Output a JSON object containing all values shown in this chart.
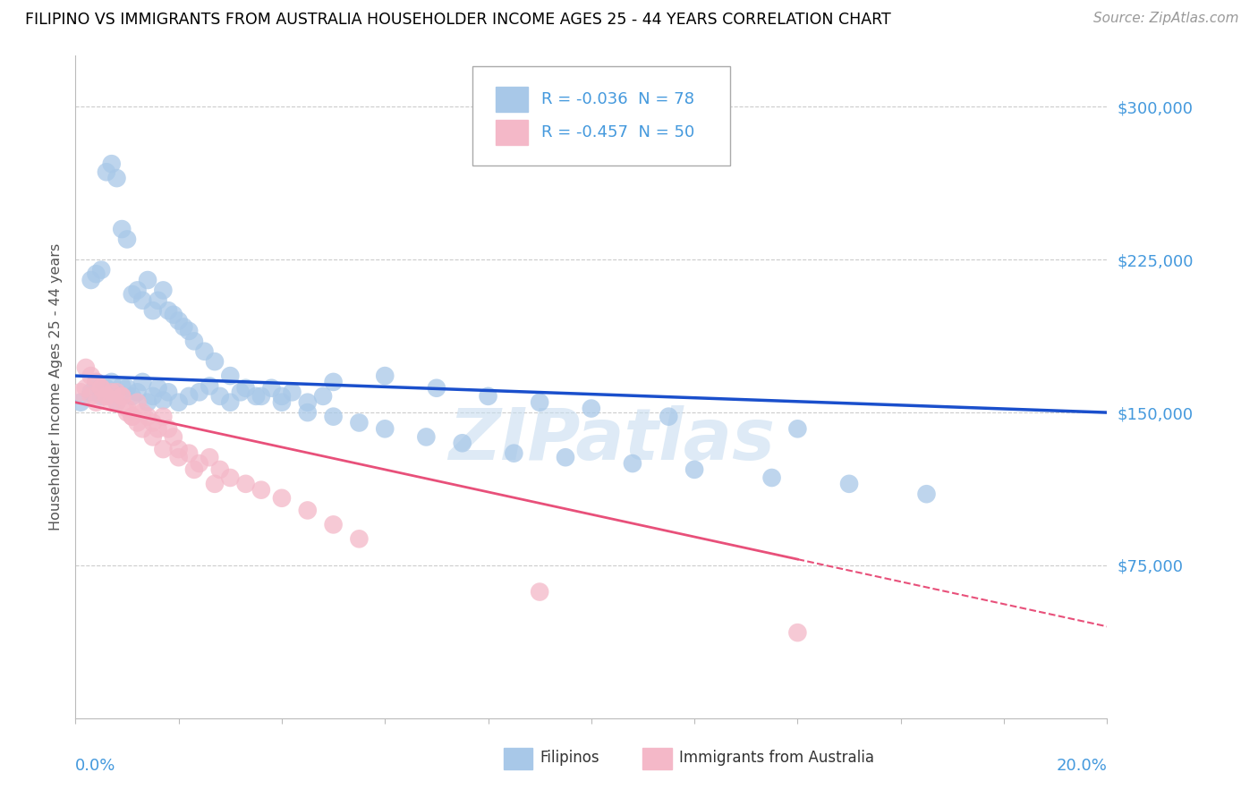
{
  "title": "FILIPINO VS IMMIGRANTS FROM AUSTRALIA HOUSEHOLDER INCOME AGES 25 - 44 YEARS CORRELATION CHART",
  "source": "Source: ZipAtlas.com",
  "ylabel": "Householder Income Ages 25 - 44 years",
  "xmin": 0.0,
  "xmax": 0.2,
  "ymin": 0,
  "ymax": 325000,
  "yticks": [
    75000,
    150000,
    225000,
    300000
  ],
  "filipinos_color": "#a8c8e8",
  "australia_color": "#f4b8c8",
  "filipinos_trend_color": "#1a4fcc",
  "australia_trend_color": "#e8507a",
  "watermark_color": "#c8ddf0",
  "background_color": "#ffffff",
  "grid_color": "#cccccc",
  "axis_color": "#bbbbbb",
  "title_color": "#000000",
  "source_color": "#999999",
  "tick_label_color": "#4499dd",
  "filipinos_R": -0.036,
  "filipinos_N": 78,
  "australia_R": -0.457,
  "australia_N": 50,
  "fil_trend_y0": 168000,
  "fil_trend_y1": 150000,
  "aus_trend_y0": 155000,
  "aus_trend_y1": 45000,
  "filipinos_x": [
    0.001,
    0.003,
    0.004,
    0.005,
    0.006,
    0.007,
    0.008,
    0.009,
    0.01,
    0.011,
    0.012,
    0.013,
    0.014,
    0.015,
    0.016,
    0.017,
    0.018,
    0.02,
    0.022,
    0.024,
    0.026,
    0.028,
    0.03,
    0.032,
    0.035,
    0.038,
    0.04,
    0.042,
    0.045,
    0.048,
    0.003,
    0.004,
    0.005,
    0.006,
    0.007,
    0.008,
    0.009,
    0.01,
    0.011,
    0.012,
    0.013,
    0.014,
    0.015,
    0.016,
    0.017,
    0.018,
    0.019,
    0.02,
    0.021,
    0.022,
    0.023,
    0.025,
    0.027,
    0.03,
    0.033,
    0.036,
    0.04,
    0.045,
    0.05,
    0.055,
    0.06,
    0.068,
    0.075,
    0.085,
    0.095,
    0.108,
    0.12,
    0.135,
    0.15,
    0.165,
    0.05,
    0.06,
    0.07,
    0.08,
    0.09,
    0.1,
    0.115,
    0.14
  ],
  "filipinos_y": [
    155000,
    160000,
    165000,
    158000,
    162000,
    165000,
    155000,
    163000,
    162000,
    158000,
    160000,
    165000,
    155000,
    158000,
    162000,
    156000,
    160000,
    155000,
    158000,
    160000,
    163000,
    158000,
    155000,
    160000,
    158000,
    162000,
    158000,
    160000,
    155000,
    158000,
    215000,
    218000,
    220000,
    268000,
    272000,
    265000,
    240000,
    235000,
    208000,
    210000,
    205000,
    215000,
    200000,
    205000,
    210000,
    200000,
    198000,
    195000,
    192000,
    190000,
    185000,
    180000,
    175000,
    168000,
    162000,
    158000,
    155000,
    150000,
    148000,
    145000,
    142000,
    138000,
    135000,
    130000,
    128000,
    125000,
    122000,
    118000,
    115000,
    110000,
    165000,
    168000,
    162000,
    158000,
    155000,
    152000,
    148000,
    142000
  ],
  "australia_x": [
    0.001,
    0.002,
    0.003,
    0.004,
    0.005,
    0.006,
    0.007,
    0.008,
    0.009,
    0.01,
    0.011,
    0.012,
    0.013,
    0.014,
    0.015,
    0.016,
    0.017,
    0.018,
    0.019,
    0.02,
    0.022,
    0.024,
    0.026,
    0.028,
    0.03,
    0.033,
    0.036,
    0.04,
    0.045,
    0.05,
    0.002,
    0.003,
    0.004,
    0.005,
    0.006,
    0.007,
    0.008,
    0.009,
    0.01,
    0.011,
    0.012,
    0.013,
    0.015,
    0.017,
    0.02,
    0.023,
    0.027,
    0.055,
    0.09,
    0.14
  ],
  "australia_y": [
    160000,
    162000,
    158000,
    155000,
    162000,
    158000,
    155000,
    160000,
    158000,
    152000,
    148000,
    155000,
    150000,
    148000,
    145000,
    142000,
    148000,
    142000,
    138000,
    132000,
    130000,
    125000,
    128000,
    122000,
    118000,
    115000,
    112000,
    108000,
    102000,
    95000,
    172000,
    168000,
    165000,
    162000,
    158000,
    160000,
    155000,
    158000,
    150000,
    148000,
    145000,
    142000,
    138000,
    132000,
    128000,
    122000,
    115000,
    88000,
    62000,
    42000
  ]
}
